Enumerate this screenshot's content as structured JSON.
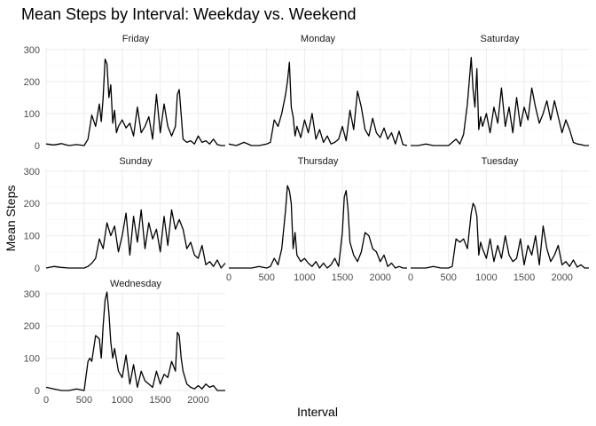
{
  "chart_data": {
    "type": "line",
    "title": "Mean Steps by Interval: Weekday vs. Weekend",
    "xlabel": "Interval",
    "ylabel": "Mean Steps",
    "xlim": [
      0,
      2355
    ],
    "ylim": [
      0,
      305
    ],
    "x_ticks": [
      0,
      500,
      1000,
      1500,
      2000
    ],
    "y_ticks": [
      0,
      100,
      200,
      300
    ],
    "facets": [
      {
        "name": "Friday",
        "x": [
          0,
          100,
          200,
          300,
          400,
          500,
          550,
          600,
          650,
          700,
          725,
          750,
          775,
          800,
          825,
          850,
          875,
          900,
          925,
          950,
          1000,
          1050,
          1100,
          1150,
          1200,
          1250,
          1300,
          1350,
          1400,
          1450,
          1500,
          1550,
          1600,
          1650,
          1700,
          1725,
          1750,
          1800,
          1850,
          1900,
          1950,
          2000,
          2050,
          2100,
          2150,
          2200,
          2250,
          2300,
          2355
        ],
        "y": [
          5,
          2,
          6,
          0,
          3,
          0,
          20,
          95,
          60,
          130,
          75,
          150,
          270,
          255,
          150,
          190,
          70,
          110,
          40,
          60,
          80,
          55,
          70,
          30,
          120,
          40,
          60,
          90,
          20,
          160,
          40,
          130,
          60,
          30,
          60,
          160,
          175,
          20,
          10,
          15,
          5,
          30,
          10,
          15,
          5,
          20,
          3,
          0,
          0
        ]
      },
      {
        "name": "Monday",
        "x": [
          0,
          100,
          200,
          300,
          400,
          500,
          550,
          600,
          650,
          700,
          750,
          775,
          800,
          825,
          850,
          875,
          900,
          950,
          1000,
          1050,
          1100,
          1150,
          1200,
          1250,
          1300,
          1350,
          1400,
          1450,
          1500,
          1550,
          1600,
          1650,
          1700,
          1750,
          1800,
          1850,
          1900,
          1950,
          2000,
          2050,
          2100,
          2150,
          2200,
          2250,
          2300,
          2355
        ],
        "y": [
          5,
          0,
          10,
          0,
          0,
          5,
          10,
          80,
          60,
          100,
          160,
          200,
          260,
          120,
          90,
          30,
          60,
          25,
          80,
          40,
          100,
          20,
          50,
          10,
          30,
          5,
          10,
          20,
          60,
          15,
          110,
          50,
          170,
          120,
          50,
          30,
          85,
          40,
          25,
          55,
          20,
          40,
          5,
          45,
          3,
          0
        ]
      },
      {
        "name": "Saturday",
        "x": [
          0,
          100,
          200,
          300,
          400,
          500,
          550,
          600,
          650,
          700,
          750,
          800,
          825,
          850,
          875,
          900,
          925,
          950,
          1000,
          1050,
          1100,
          1150,
          1200,
          1250,
          1300,
          1350,
          1400,
          1450,
          1500,
          1550,
          1600,
          1650,
          1700,
          1750,
          1800,
          1850,
          1900,
          1950,
          2000,
          2050,
          2100,
          2150,
          2200,
          2250,
          2300,
          2355
        ],
        "y": [
          0,
          0,
          5,
          0,
          0,
          0,
          10,
          20,
          5,
          35,
          130,
          275,
          175,
          120,
          240,
          50,
          90,
          60,
          100,
          40,
          120,
          70,
          180,
          60,
          120,
          40,
          150,
          60,
          120,
          80,
          180,
          120,
          70,
          100,
          140,
          80,
          140,
          90,
          40,
          80,
          50,
          10,
          5,
          3,
          0,
          0
        ]
      },
      {
        "name": "Sunday",
        "x": [
          0,
          100,
          200,
          300,
          400,
          500,
          550,
          600,
          650,
          700,
          750,
          800,
          850,
          900,
          950,
          1000,
          1050,
          1100,
          1150,
          1200,
          1250,
          1300,
          1350,
          1400,
          1450,
          1500,
          1550,
          1600,
          1650,
          1700,
          1750,
          1800,
          1850,
          1900,
          1950,
          2000,
          2050,
          2100,
          2150,
          2200,
          2250,
          2300,
          2355
        ],
        "y": [
          0,
          5,
          2,
          0,
          0,
          0,
          5,
          15,
          30,
          90,
          60,
          140,
          100,
          130,
          50,
          100,
          170,
          40,
          160,
          80,
          180,
          60,
          140,
          90,
          120,
          50,
          160,
          70,
          180,
          120,
          150,
          120,
          60,
          80,
          40,
          30,
          70,
          10,
          20,
          5,
          25,
          0,
          15
        ]
      },
      {
        "name": "Thursday",
        "x": [
          0,
          100,
          200,
          300,
          400,
          500,
          550,
          600,
          650,
          700,
          750,
          775,
          800,
          825,
          850,
          875,
          900,
          950,
          1000,
          1050,
          1100,
          1150,
          1200,
          1250,
          1300,
          1350,
          1400,
          1450,
          1500,
          1525,
          1550,
          1575,
          1600,
          1650,
          1700,
          1750,
          1800,
          1850,
          1900,
          1950,
          2000,
          2050,
          2100,
          2150,
          2200,
          2250,
          2300,
          2355
        ],
        "y": [
          0,
          0,
          0,
          0,
          5,
          0,
          5,
          30,
          10,
          60,
          180,
          255,
          240,
          200,
          60,
          110,
          40,
          20,
          30,
          15,
          5,
          20,
          0,
          15,
          0,
          10,
          30,
          5,
          110,
          220,
          240,
          180,
          80,
          40,
          20,
          50,
          110,
          100,
          60,
          50,
          20,
          40,
          5,
          15,
          0,
          5,
          0,
          0
        ]
      },
      {
        "name": "Tuesday",
        "x": [
          0,
          100,
          200,
          300,
          400,
          500,
          550,
          600,
          650,
          700,
          750,
          800,
          825,
          850,
          875,
          900,
          925,
          950,
          1000,
          1050,
          1100,
          1150,
          1200,
          1250,
          1300,
          1350,
          1400,
          1450,
          1500,
          1550,
          1600,
          1650,
          1700,
          1750,
          1800,
          1850,
          1900,
          1950,
          2000,
          2050,
          2100,
          2150,
          2200,
          2250,
          2300,
          2355
        ],
        "y": [
          0,
          0,
          0,
          5,
          0,
          0,
          5,
          90,
          80,
          90,
          60,
          170,
          200,
          190,
          160,
          40,
          80,
          60,
          30,
          90,
          20,
          70,
          30,
          100,
          40,
          20,
          30,
          90,
          10,
          70,
          40,
          100,
          10,
          130,
          60,
          20,
          40,
          70,
          10,
          20,
          5,
          25,
          3,
          10,
          0,
          0
        ]
      },
      {
        "name": "Wednesday",
        "x": [
          0,
          100,
          200,
          300,
          400,
          500,
          550,
          575,
          600,
          650,
          700,
          725,
          750,
          775,
          800,
          825,
          850,
          875,
          900,
          950,
          1000,
          1050,
          1100,
          1150,
          1200,
          1250,
          1300,
          1350,
          1400,
          1450,
          1500,
          1550,
          1600,
          1650,
          1700,
          1725,
          1750,
          1775,
          1800,
          1850,
          1900,
          1950,
          2000,
          2050,
          2100,
          2150,
          2200,
          2250,
          2300,
          2355
        ],
        "y": [
          10,
          5,
          0,
          0,
          5,
          0,
          90,
          100,
          90,
          170,
          160,
          100,
          200,
          280,
          305,
          240,
          150,
          100,
          130,
          60,
          40,
          110,
          20,
          80,
          10,
          60,
          30,
          20,
          10,
          60,
          20,
          50,
          40,
          90,
          60,
          180,
          170,
          100,
          60,
          20,
          10,
          5,
          15,
          5,
          20,
          10,
          15,
          0,
          0,
          0
        ]
      }
    ]
  }
}
